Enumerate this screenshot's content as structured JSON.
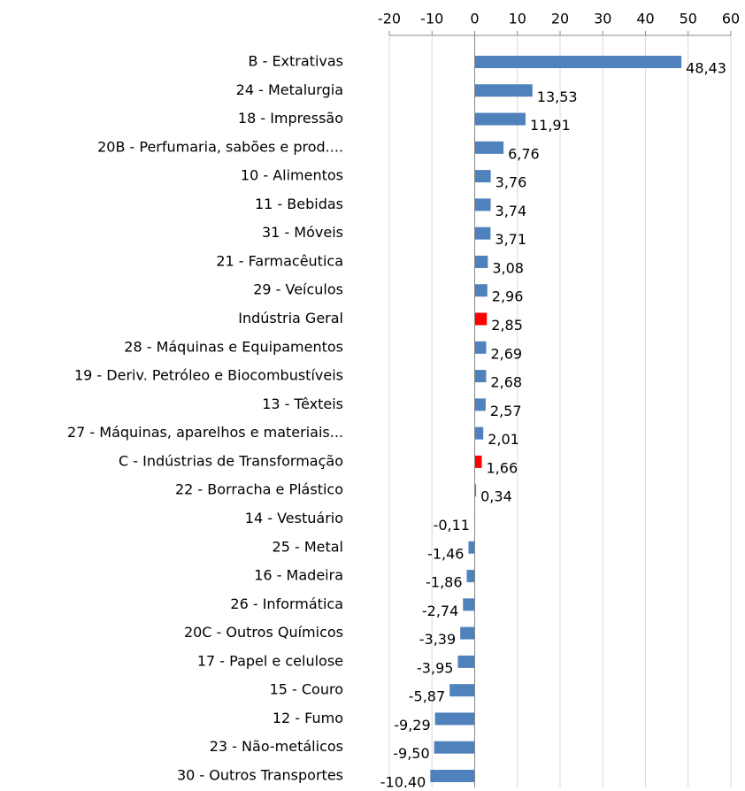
{
  "chart_data": {
    "type": "hbar",
    "categories": [
      "B - Extrativas",
      "24 - Metalurgia",
      "18 - Impressão",
      "20B - Perfumaria, sabões e prod....",
      "10 - Alimentos",
      "11 - Bebidas",
      "31 - Móveis",
      "21 - Farmacêutica",
      "29 - Veículos",
      "Indústria Geral",
      "28 - Máquinas e Equipamentos",
      "19 - Deriv. Petróleo e Biocombustíveis",
      "13 - Têxteis",
      "27 - Máquinas, aparelhos e materiais...",
      "C - Indústrias de Transformação",
      "22 - Borracha e Plástico",
      "14 - Vestuário",
      "25 - Metal",
      "16 - Madeira",
      "26 - Informática",
      "20C - Outros Químicos",
      "17 - Papel e celulose",
      "15 - Couro",
      "12 - Fumo",
      "23 - Não-metálicos",
      "30 - Outros Transportes"
    ],
    "values": [
      48.43,
      13.53,
      11.91,
      6.76,
      3.76,
      3.74,
      3.71,
      3.08,
      2.96,
      2.85,
      2.69,
      2.68,
      2.57,
      2.01,
      1.66,
      0.34,
      -0.11,
      -1.46,
      -1.86,
      -2.74,
      -3.39,
      -3.95,
      -5.87,
      -9.29,
      -9.5,
      -10.4
    ],
    "value_labels": [
      "48,43",
      "13,53",
      "11,91",
      "6,76",
      "3,76",
      "3,74",
      "3,71",
      "3,08",
      "2,96",
      "2,85",
      "2,69",
      "2,68",
      "2,57",
      "2,01",
      "1,66",
      "0,34",
      "-0,11",
      "-1,46",
      "-1,86",
      "-2,74",
      "-3,39",
      "-3,95",
      "-5,87",
      "-9,29",
      "-9,50",
      "-10,40"
    ],
    "colors": [
      "#4f81bd",
      "#4f81bd",
      "#4f81bd",
      "#4f81bd",
      "#4f81bd",
      "#4f81bd",
      "#4f81bd",
      "#4f81bd",
      "#4f81bd",
      "#ff0000",
      "#4f81bd",
      "#4f81bd",
      "#4f81bd",
      "#4f81bd",
      "#ff0000",
      "#4f81bd",
      "#4f81bd",
      "#4f81bd",
      "#4f81bd",
      "#4f81bd",
      "#4f81bd",
      "#4f81bd",
      "#4f81bd",
      "#4f81bd",
      "#4f81bd",
      "#4f81bd"
    ],
    "xlim": [
      -20,
      60
    ],
    "xticks": [
      -20,
      -10,
      0,
      10,
      20,
      30,
      40,
      50,
      60
    ],
    "grid": true
  }
}
